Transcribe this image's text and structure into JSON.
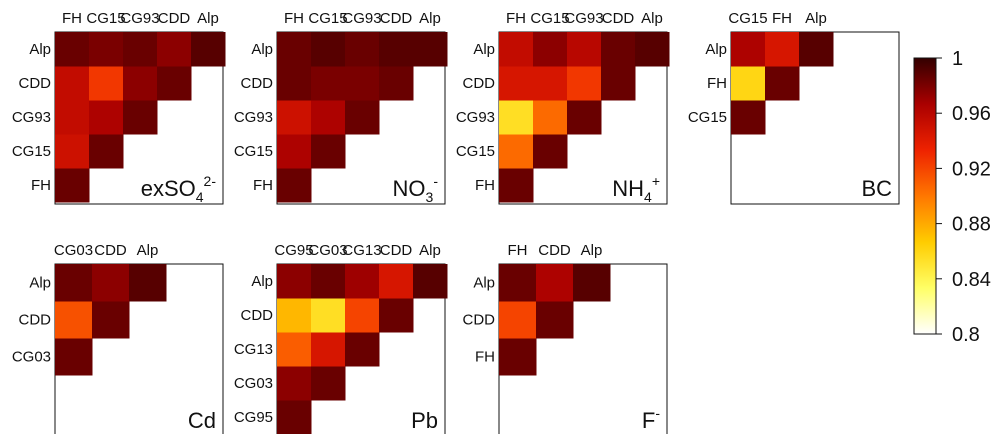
{
  "chart_data": [
    {
      "type": "heatmap",
      "title": "exSO",
      "title_sub": "4",
      "title_sup": "2-",
      "labels": [
        "FH",
        "CG15",
        "CG93",
        "CDD",
        "Alp"
      ],
      "rows": [
        [
          0.985
        ],
        [
          0.95,
          0.985
        ],
        [
          0.955,
          0.965,
          0.985
        ],
        [
          0.955,
          0.925,
          0.975,
          0.985
        ],
        [
          0.985,
          0.98,
          0.985,
          0.975,
          0.99
        ]
      ]
    },
    {
      "type": "heatmap",
      "title": "NO",
      "title_sub": "3",
      "title_sup": "-",
      "labels": [
        "FH",
        "CG15",
        "CG93",
        "CDD",
        "Alp"
      ],
      "rows": [
        [
          0.985
        ],
        [
          0.965,
          0.985
        ],
        [
          0.95,
          0.965,
          0.985
        ],
        [
          0.985,
          0.98,
          0.98,
          0.985
        ],
        [
          0.985,
          0.99,
          0.985,
          0.99,
          0.99
        ]
      ]
    },
    {
      "type": "heatmap",
      "title": "NH",
      "title_sub": "4",
      "title_sup": "+",
      "labels": [
        "FH",
        "CG15",
        "CG93",
        "CDD",
        "Alp"
      ],
      "rows": [
        [
          0.985
        ],
        [
          0.905,
          0.985
        ],
        [
          0.855,
          0.905,
          0.985
        ],
        [
          0.945,
          0.945,
          0.925,
          0.985
        ],
        [
          0.955,
          0.975,
          0.96,
          0.985,
          0.99
        ]
      ]
    },
    {
      "type": "heatmap",
      "title": "BC",
      "title_sub": "",
      "title_sup": "",
      "labels": [
        "CG15",
        "FH",
        "Alp"
      ],
      "rows": [
        [
          0.985
        ],
        [
          0.86,
          0.985
        ],
        [
          0.965,
          0.945,
          0.99
        ]
      ]
    },
    {
      "type": "heatmap",
      "title": "Cd",
      "title_sub": "",
      "title_sup": "",
      "labels": [
        "CG03",
        "CDD",
        "Alp"
      ],
      "rows": [
        [
          0.985
        ],
        [
          0.915,
          0.985
        ],
        [
          0.985,
          0.975,
          0.99
        ]
      ]
    },
    {
      "type": "heatmap",
      "title": "Pb",
      "title_sub": "",
      "title_sup": "",
      "labels": [
        "CG95",
        "CG03",
        "CG13",
        "CDD",
        "Alp"
      ],
      "rows": [
        [
          0.985
        ],
        [
          0.975,
          0.985
        ],
        [
          0.91,
          0.945,
          0.985
        ],
        [
          0.875,
          0.855,
          0.92,
          0.985
        ],
        [
          0.975,
          0.985,
          0.97,
          0.945,
          0.99
        ]
      ]
    },
    {
      "type": "heatmap",
      "title": "F",
      "title_sub": "",
      "title_sup": "-",
      "labels": [
        "FH",
        "CDD",
        "Alp"
      ],
      "rows": [
        [
          0.985
        ],
        [
          0.92,
          0.985
        ],
        [
          0.985,
          0.965,
          0.99
        ]
      ]
    }
  ],
  "colorbar": {
    "range": [
      0.8,
      1
    ],
    "ticks": [
      "0.8",
      "0.84",
      "0.88",
      "0.92",
      "0.96",
      "1"
    ],
    "colormap": [
      "#ffffff",
      "#ffff66",
      "#ffcc00",
      "#ff7700",
      "#ee2200",
      "#aa0000",
      "#330000"
    ]
  }
}
